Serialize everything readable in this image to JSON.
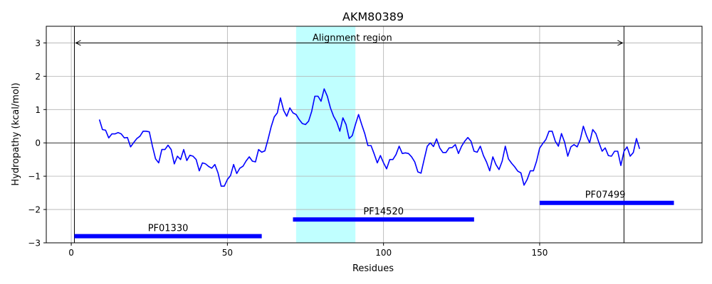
{
  "chart_data": {
    "type": "line",
    "title": "AKM80389",
    "xlabel": "Residues",
    "ylabel": "Hydropathy (kcal/mol)",
    "xlim": [
      -8,
      202
    ],
    "ylim": [
      -3,
      3.5
    ],
    "xticks": [
      0,
      50,
      100,
      150
    ],
    "yticks": [
      -3,
      -2,
      -1,
      0,
      1,
      2,
      3
    ],
    "grid": true,
    "line_color": "#0000ff",
    "series": [
      {
        "x_start": 9,
        "values": [
          0.7,
          0.4,
          0.38,
          0.15,
          0.27,
          0.27,
          0.31,
          0.27,
          0.15,
          0.16,
          -0.12,
          0.01,
          0.13,
          0.2,
          0.35,
          0.35,
          0.33,
          -0.1,
          -0.48,
          -0.6,
          -0.2,
          -0.2,
          -0.07,
          -0.2,
          -0.63,
          -0.4,
          -0.5,
          -0.2,
          -0.53,
          -0.37,
          -0.4,
          -0.5,
          -0.84,
          -0.6,
          -0.63,
          -0.71,
          -0.76,
          -0.65,
          -0.9,
          -1.3,
          -1.3,
          -1.1,
          -0.98,
          -0.65,
          -0.92,
          -0.76,
          -0.7,
          -0.54,
          -0.42,
          -0.55,
          -0.57,
          -0.2,
          -0.28,
          -0.24,
          0.1,
          0.48,
          0.78,
          0.9,
          1.35,
          0.98,
          0.8,
          1.05,
          0.9,
          0.85,
          0.7,
          0.58,
          0.55,
          0.65,
          0.95,
          1.4,
          1.4,
          1.25,
          1.62,
          1.4,
          1.05,
          0.8,
          0.63,
          0.35,
          0.75,
          0.55,
          0.13,
          0.22,
          0.55,
          0.85,
          0.55,
          0.28,
          -0.08,
          -0.08,
          -0.33,
          -0.6,
          -0.38,
          -0.6,
          -0.78,
          -0.5,
          -0.5,
          -0.35,
          -0.1,
          -0.32,
          -0.3,
          -0.32,
          -0.42,
          -0.57,
          -0.87,
          -0.91,
          -0.5,
          -0.1,
          0.0,
          -0.11,
          0.12,
          -0.15,
          -0.29,
          -0.29,
          -0.15,
          -0.14,
          -0.05,
          -0.32,
          -0.1,
          0.05,
          0.16,
          0.05,
          -0.25,
          -0.28,
          -0.1,
          -0.38,
          -0.58,
          -0.84,
          -0.42,
          -0.65,
          -0.8,
          -0.55,
          -0.1,
          -0.48,
          -0.61,
          -0.72,
          -0.85,
          -0.9,
          -1.27,
          -1.1,
          -0.84,
          -0.84,
          -0.55,
          -0.16,
          -0.02,
          0.1,
          0.35,
          0.35,
          0.05,
          -0.1,
          0.28,
          0.02,
          -0.4,
          -0.12,
          -0.05,
          -0.12,
          0.1,
          0.5,
          0.22,
          0.0,
          0.4,
          0.28,
          0.0,
          -0.25,
          -0.15,
          -0.38,
          -0.4,
          -0.25,
          -0.25,
          -0.68,
          -0.25,
          -0.12,
          -0.4,
          -0.29,
          0.13,
          -0.18
        ]
      }
    ],
    "horizontal_lines": [
      0
    ],
    "vertical_lines": [
      1,
      177
    ],
    "highlight_region": {
      "from": 72,
      "to": 91,
      "color": "#c0ffff"
    },
    "annotations": [
      {
        "label": "Alignment region",
        "from": 1,
        "to": 177,
        "y": 3,
        "label_x": 90
      }
    ],
    "domains": [
      {
        "label": "PF01330",
        "start": 1,
        "end": 61,
        "y": -2.8,
        "label_x": 31
      },
      {
        "label": "PF14520",
        "start": 71,
        "end": 129,
        "y": -2.3,
        "label_x": 100
      },
      {
        "label": "PF07499",
        "start": 150,
        "end": 193,
        "y": -1.8,
        "label_x": 171
      }
    ],
    "domain_color": "#0000ff"
  }
}
